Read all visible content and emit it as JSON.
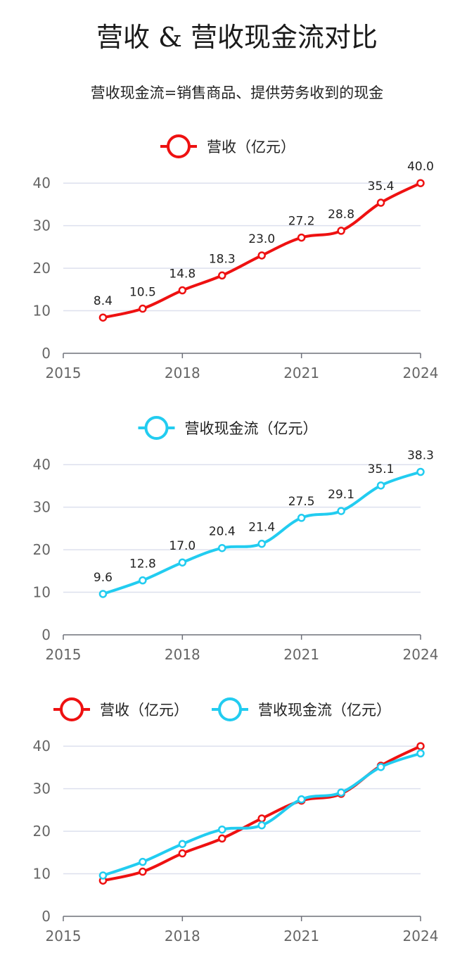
{
  "title": "营收 & 营收现金流对比",
  "subtitle": "营收现金流=销售商品、提供劳务收到的现金",
  "colors": {
    "revenue": "#ee1111",
    "cashflow": "#22ccf0",
    "grid": "#dde0ee",
    "axis": "#6e7079"
  },
  "chart_data": [
    {
      "type": "line",
      "x": [
        2016,
        2017,
        2018,
        2019,
        2020,
        2021,
        2022,
        2023,
        2024
      ],
      "xlim": [
        2015,
        2024
      ],
      "xticks": [
        "2015",
        "2018",
        "2021",
        "2024"
      ],
      "ylim": [
        0,
        45
      ],
      "yticks": [
        "0",
        "10",
        "20",
        "30",
        "40"
      ],
      "grid": true,
      "legend_position": "top-center",
      "series": [
        {
          "name": "营收（亿元）",
          "color": "#ee1111",
          "values": [
            8.4,
            10.5,
            14.8,
            18.3,
            23.0,
            27.2,
            28.8,
            35.4,
            40.0
          ],
          "labels": [
            "8.4",
            "10.5",
            "14.8",
            "18.3",
            "23.0",
            "27.2",
            "28.8",
            "35.4",
            "40.0"
          ]
        }
      ]
    },
    {
      "type": "line",
      "x": [
        2016,
        2017,
        2018,
        2019,
        2020,
        2021,
        2022,
        2023,
        2024
      ],
      "xlim": [
        2015,
        2024
      ],
      "xticks": [
        "2015",
        "2018",
        "2021",
        "2024"
      ],
      "ylim": [
        0,
        45
      ],
      "yticks": [
        "0",
        "10",
        "20",
        "30",
        "40"
      ],
      "grid": true,
      "legend_position": "top-center",
      "series": [
        {
          "name": "营收现金流（亿元）",
          "color": "#22ccf0",
          "values": [
            9.6,
            12.8,
            17.0,
            20.4,
            21.4,
            27.5,
            29.1,
            35.1,
            38.3
          ],
          "labels": [
            "9.6",
            "12.8",
            "17.0",
            "20.4",
            "21.4",
            "27.5",
            "29.1",
            "35.1",
            "38.3"
          ]
        }
      ]
    },
    {
      "type": "line",
      "x": [
        2016,
        2017,
        2018,
        2019,
        2020,
        2021,
        2022,
        2023,
        2024
      ],
      "xlim": [
        2015,
        2024
      ],
      "xticks": [
        "2015",
        "2018",
        "2021",
        "2024"
      ],
      "ylim": [
        0,
        45
      ],
      "yticks": [
        "0",
        "10",
        "20",
        "30",
        "40"
      ],
      "grid": true,
      "legend_position": "top-center",
      "series": [
        {
          "name": "营收（亿元）",
          "color": "#ee1111",
          "values": [
            8.4,
            10.5,
            14.8,
            18.3,
            23.0,
            27.2,
            28.8,
            35.4,
            40.0
          ]
        },
        {
          "name": "营收现金流（亿元）",
          "color": "#22ccf0",
          "values": [
            9.6,
            12.8,
            17.0,
            20.4,
            21.4,
            27.5,
            29.1,
            35.1,
            38.3
          ]
        }
      ]
    }
  ]
}
